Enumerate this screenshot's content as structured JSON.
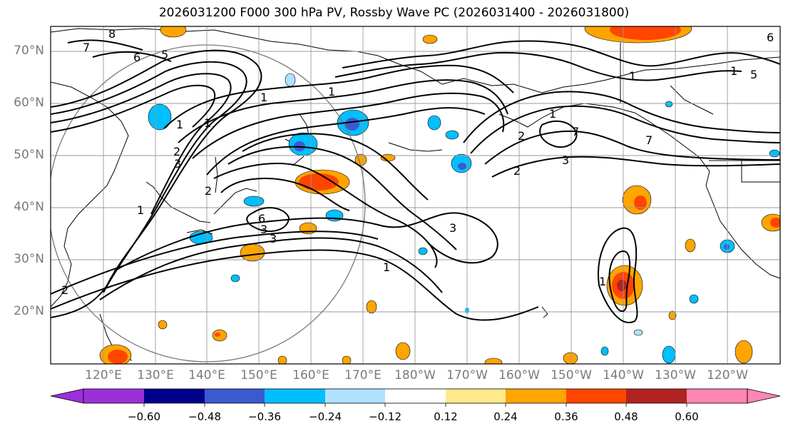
{
  "title": "2026031200 F000 300 hPa PV, Rossby Wave PC (2026031400 - 2026031800)",
  "lat_labels": [
    "70°N",
    "60°N",
    "50°N",
    "40°N",
    "30°N",
    "20°N"
  ],
  "lon_labels": [
    "120°E",
    "130°E",
    "140°E",
    "150°E",
    "160°E",
    "170°E",
    "180°W",
    "170°W",
    "160°W",
    "150°W",
    "140°W",
    "130°W",
    "120°W"
  ],
  "colorbar": {
    "ticks": [
      "−0.60",
      "−0.48",
      "−0.36",
      "−0.24",
      "−0.12",
      "0.12",
      "0.24",
      "0.36",
      "0.48",
      "0.60"
    ],
    "colors": [
      "#9b30d9",
      "#00008b",
      "#3a5bd0",
      "#00bfff",
      "#b0e2ff",
      "#ffffff",
      "#ffe98a",
      "#ffa500",
      "#ff4500",
      "#b22222",
      "#ff85b3"
    ]
  },
  "contour_labels": [
    "8",
    "7",
    "6",
    "5",
    "1",
    "2",
    "3",
    "6",
    "3",
    "3",
    "1",
    "2",
    "3",
    "1",
    "1",
    "1",
    "3",
    "7",
    "5",
    "1",
    "1",
    "6",
    "7",
    "2",
    "1",
    "1",
    "2",
    "1",
    "2"
  ]
}
